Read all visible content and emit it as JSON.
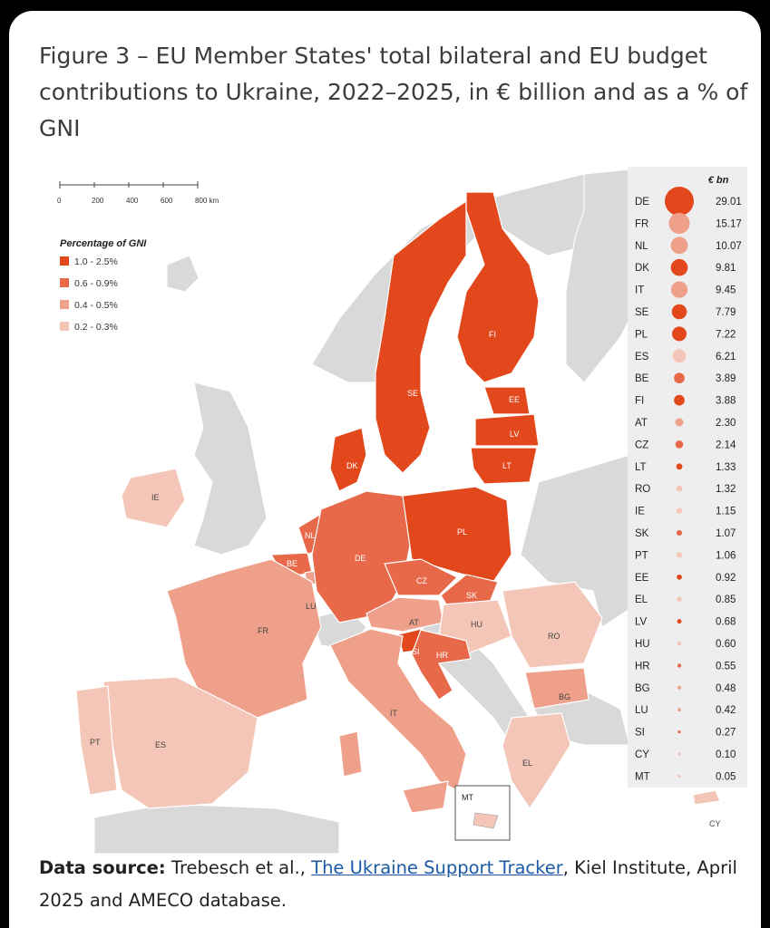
{
  "title": "Figure 3 – EU Member States' total bilateral and EU budget contributions to Ukraine, 2022–2025, in € billion and as a % of GNI",
  "scale_bar": {
    "ticks": [
      "0",
      "200",
      "400",
      "600",
      "800 km"
    ]
  },
  "legend": {
    "title": "Percentage of GNI",
    "items": [
      {
        "label": "1.0 - 2.5%",
        "color": "#e2481c"
      },
      {
        "label": "0.6 - 0.9%",
        "color": "#e8694a"
      },
      {
        "label": "0.4 - 0.5%",
        "color": "#efa08a"
      },
      {
        "label": "0.2 - 0.3%",
        "color": "#f4c6b8"
      }
    ]
  },
  "map_labels": [
    "SE",
    "FI",
    "EE",
    "LV",
    "LT",
    "DK",
    "IE",
    "NL",
    "BE",
    "LU",
    "DE",
    "PL",
    "CZ",
    "SK",
    "AT",
    "HU",
    "RO",
    "FR",
    "SI",
    "HR",
    "BG",
    "IT",
    "PT",
    "ES",
    "EL",
    "MT",
    "CY"
  ],
  "inset_label": "MT",
  "chart_data": {
    "type": "bubble",
    "title": "Figure 3 – EU Member States' total bilateral and EU budget contributions to Ukraine, 2022–2025, in € billion and as a % of GNI",
    "value_header": "€ bn",
    "categories": [
      "DE",
      "FR",
      "NL",
      "DK",
      "IT",
      "SE",
      "PL",
      "ES",
      "BE",
      "FI",
      "AT",
      "CZ",
      "LT",
      "RO",
      "IE",
      "SK",
      "PT",
      "EE",
      "EL",
      "LV",
      "HU",
      "HR",
      "BG",
      "LU",
      "SI",
      "CY",
      "MT"
    ],
    "values": [
      29.01,
      15.17,
      10.07,
      9.81,
      9.45,
      7.79,
      7.22,
      6.21,
      3.89,
      3.88,
      2.3,
      2.14,
      1.33,
      1.32,
      1.15,
      1.07,
      1.06,
      0.92,
      0.85,
      0.68,
      0.6,
      0.55,
      0.48,
      0.42,
      0.27,
      0.1,
      0.05
    ],
    "value_labels": [
      "29.01",
      "15.17",
      "10.07",
      "9.81",
      "9.45",
      "7.79",
      "7.22",
      "6.21",
      "3.89",
      "3.88",
      "2.30",
      "2.14",
      "1.33",
      "1.32",
      "1.15",
      "1.07",
      "1.06",
      "0.92",
      "0.85",
      "0.68",
      "0.60",
      "0.55",
      "0.48",
      "0.42",
      "0.27",
      "0.10",
      "0.05"
    ],
    "gni_class": [
      3,
      1,
      1,
      3,
      1,
      3,
      3,
      0,
      2,
      3,
      1,
      2,
      3,
      0,
      0,
      2,
      0,
      3,
      0,
      3,
      0,
      2,
      1,
      1,
      2,
      0,
      0
    ],
    "class_colors": [
      "#f4c6b8",
      "#efa08a",
      "#e8694a",
      "#e2481c"
    ]
  },
  "source": {
    "label": "Data source:",
    "text_before": " Trebesch et al., ",
    "link": "The Ukraine Support Tracker",
    "text_after": ", Kiel Institute, April 2025 and AMECO database."
  }
}
